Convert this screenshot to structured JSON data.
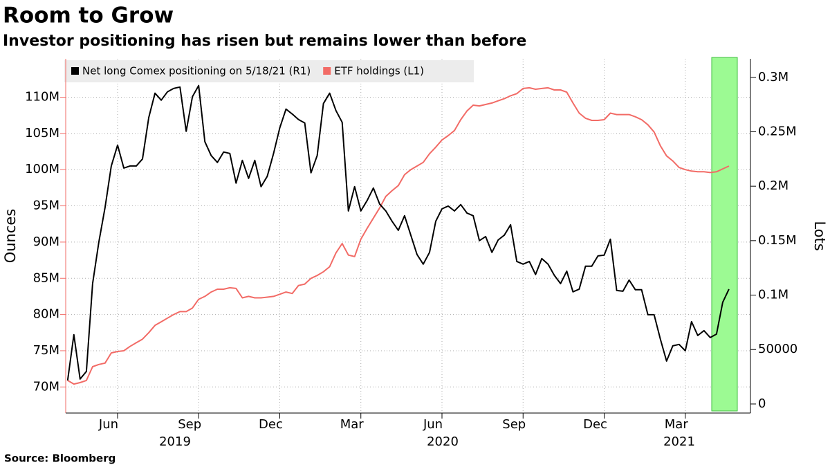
{
  "chart_data": {
    "type": "line",
    "title": "Room to Grow",
    "subtitle": "Investor positioning has risen but remains lower than before",
    "source": "Source: Bloomberg",
    "ylabel": "Ounces",
    "y2label": "Lots",
    "categories": [
      null,
      null,
      null,
      null,
      null,
      null,
      null,
      null,
      "Jun",
      null,
      null,
      null,
      null,
      null,
      null,
      null,
      null,
      null,
      null,
      null,
      null,
      "Sep",
      null,
      null,
      null,
      null,
      null,
      null,
      null,
      null,
      null,
      null,
      null,
      null,
      "Dec",
      null,
      null,
      null,
      null,
      null,
      null,
      null,
      null,
      null,
      null,
      null,
      null,
      "Mar",
      null,
      null,
      null,
      null,
      null,
      null,
      null,
      null,
      null,
      null,
      null,
      null,
      "Jun",
      null,
      null,
      null,
      null,
      null,
      null,
      null,
      null,
      null,
      null,
      null,
      null,
      "Sep",
      null,
      null,
      null,
      null,
      null,
      null,
      null,
      null,
      null,
      null,
      null,
      null,
      "Dec",
      null,
      null,
      null,
      null,
      null,
      null,
      null,
      null,
      null,
      null,
      null,
      null,
      "Mar",
      null,
      null,
      null,
      null,
      null,
      null,
      null
    ],
    "years": [
      "2019",
      "2020",
      "2021"
    ],
    "series": [
      {
        "name": "Net long Comex positioning on 5/18/21 (R1)",
        "color": "#000000",
        "axis": "y2",
        "values": [
          21600,
          63600,
          22900,
          29900,
          110600,
          148700,
          180500,
          218600,
          237700,
          216700,
          218600,
          218600,
          225000,
          263100,
          285400,
          279000,
          286700,
          289800,
          291100,
          250400,
          282200,
          292400,
          240900,
          228200,
          221800,
          231400,
          230100,
          202800,
          223700,
          207200,
          223700,
          199600,
          209100,
          230100,
          253600,
          270800,
          266300,
          261200,
          258100,
          212300,
          228200,
          275900,
          285400,
          269500,
          258700,
          177300,
          199600,
          177300,
          186900,
          198300,
          183700,
          177300,
          167800,
          159500,
          172900,
          155100,
          137300,
          128400,
          139200,
          167800,
          179200,
          181800,
          177300,
          183100,
          175400,
          172900,
          150000,
          153800,
          139200,
          150600,
          155100,
          164600,
          130900,
          128400,
          130900,
          118900,
          133500,
          128400,
          118200,
          110600,
          122000,
          103000,
          105500,
          126500,
          126500,
          136000,
          136700,
          151300,
          104200,
          103600,
          113800,
          104900,
          104900,
          82000,
          82000,
          59700,
          39400,
          53400,
          54700,
          48900,
          75600,
          62900,
          67400,
          61000,
          64200,
          93400,
          105500
        ]
      },
      {
        "name": "ETF holdings (L1)",
        "color": "#f26b66",
        "values": [
          70900000,
          70400000,
          70600000,
          70900000,
          72800000,
          73100000,
          73300000,
          74700000,
          74900000,
          75000000,
          75600000,
          76100000,
          76600000,
          77500000,
          78500000,
          79000000,
          79500000,
          80000000,
          80400000,
          80400000,
          80900000,
          82100000,
          82500000,
          83100000,
          83500000,
          83500000,
          83700000,
          83600000,
          82300000,
          82500000,
          82300000,
          82300000,
          82400000,
          82500000,
          82800000,
          83100000,
          82900000,
          84000000,
          84200000,
          85000000,
          85400000,
          85900000,
          86600000,
          88500000,
          89800000,
          88200000,
          88000000,
          90400000,
          91900000,
          93300000,
          94700000,
          96300000,
          97100000,
          97800000,
          99300000,
          100000000,
          100500000,
          101000000,
          102200000,
          103100000,
          104100000,
          104700000,
          105400000,
          106900000,
          108100000,
          108900000,
          108800000,
          109000000,
          109200000,
          109500000,
          109800000,
          110200000,
          110500000,
          111200000,
          111300000,
          111100000,
          111200000,
          111300000,
          111000000,
          111000000,
          110700000,
          109200000,
          107800000,
          107100000,
          106800000,
          106800000,
          106900000,
          107800000,
          107600000,
          107600000,
          107600000,
          107300000,
          106900000,
          106200000,
          105200000,
          103300000,
          101900000,
          101200000,
          100300000,
          100000000,
          99800000,
          99700000,
          99700000,
          99600000,
          99700000,
          100100000,
          100500000
        ]
      }
    ],
    "ylim": [
      66400000,
      115300000
    ],
    "yticks": [
      {
        "value": 70000000,
        "label": "70M"
      },
      {
        "value": 75000000,
        "label": "75M"
      },
      {
        "value": 80000000,
        "label": "80M"
      },
      {
        "value": 85000000,
        "label": "85M"
      },
      {
        "value": 90000000,
        "label": "90M"
      },
      {
        "value": 95000000,
        "label": "95M"
      },
      {
        "value": 100000000,
        "label": "100M"
      },
      {
        "value": 105000000,
        "label": "105M"
      },
      {
        "value": 110000000,
        "label": "110M"
      }
    ],
    "y2lim": [
      -8300,
      317000
    ],
    "y2ticks": [
      0,
      50000,
      {
        "value": 100000,
        "label": "0.1M"
      },
      {
        "value": 150000,
        "label": "0.15M"
      },
      {
        "value": 200000,
        "label": "0.2M"
      },
      {
        "value": 250000,
        "label": "0.25M"
      },
      {
        "value": 300000,
        "label": "0.3M"
      }
    ],
    "grid": true
  }
}
